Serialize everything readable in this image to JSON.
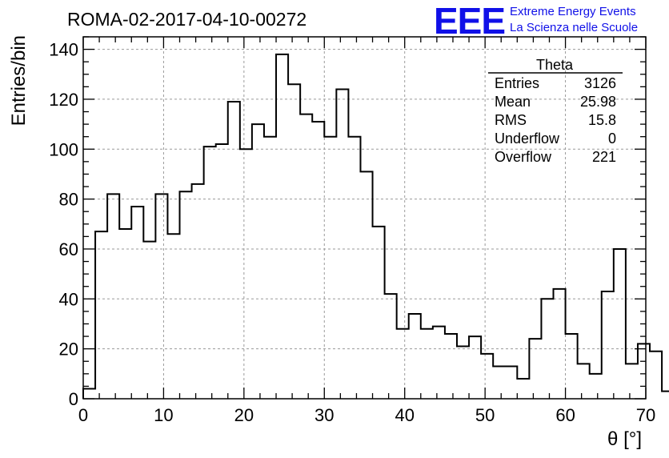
{
  "chart_data": {
    "type": "histogram",
    "title": "ROMA-02-2017-04-10-00272",
    "xlabel": "θ [°]",
    "ylabel": "Entries/bin",
    "xlim": [
      0,
      70
    ],
    "ylim": [
      0,
      145
    ],
    "xticks": [
      0,
      10,
      20,
      30,
      40,
      50,
      60,
      70
    ],
    "yticks": [
      0,
      20,
      40,
      60,
      80,
      100,
      120,
      140
    ],
    "grid": true,
    "bin_width": 1.5,
    "bin_edges_start": 0,
    "values": [
      4,
      67,
      82,
      68,
      77,
      63,
      82,
      66,
      83,
      86,
      101,
      102,
      119,
      100,
      110,
      105,
      138,
      126,
      114,
      111,
      105,
      124,
      105,
      91,
      69,
      42,
      28,
      34,
      28,
      29,
      26,
      21,
      25,
      18,
      13,
      13,
      8,
      24,
      40,
      44,
      26,
      14,
      10,
      43,
      60,
      14,
      22,
      19,
      3
    ],
    "stats": {
      "title": "Theta",
      "rows": [
        {
          "label": "Entries",
          "value": "3126"
        },
        {
          "label": "Mean",
          "value": "25.98"
        },
        {
          "label": "RMS",
          "value": "15.8"
        },
        {
          "label": "Underflow",
          "value": "0"
        },
        {
          "label": "Overflow",
          "value": "221"
        }
      ]
    }
  },
  "logo": {
    "text": "EEE",
    "line1": "Extreme Energy Events",
    "line2": "La Scienza nelle Scuole",
    "color": "#1010e8"
  }
}
